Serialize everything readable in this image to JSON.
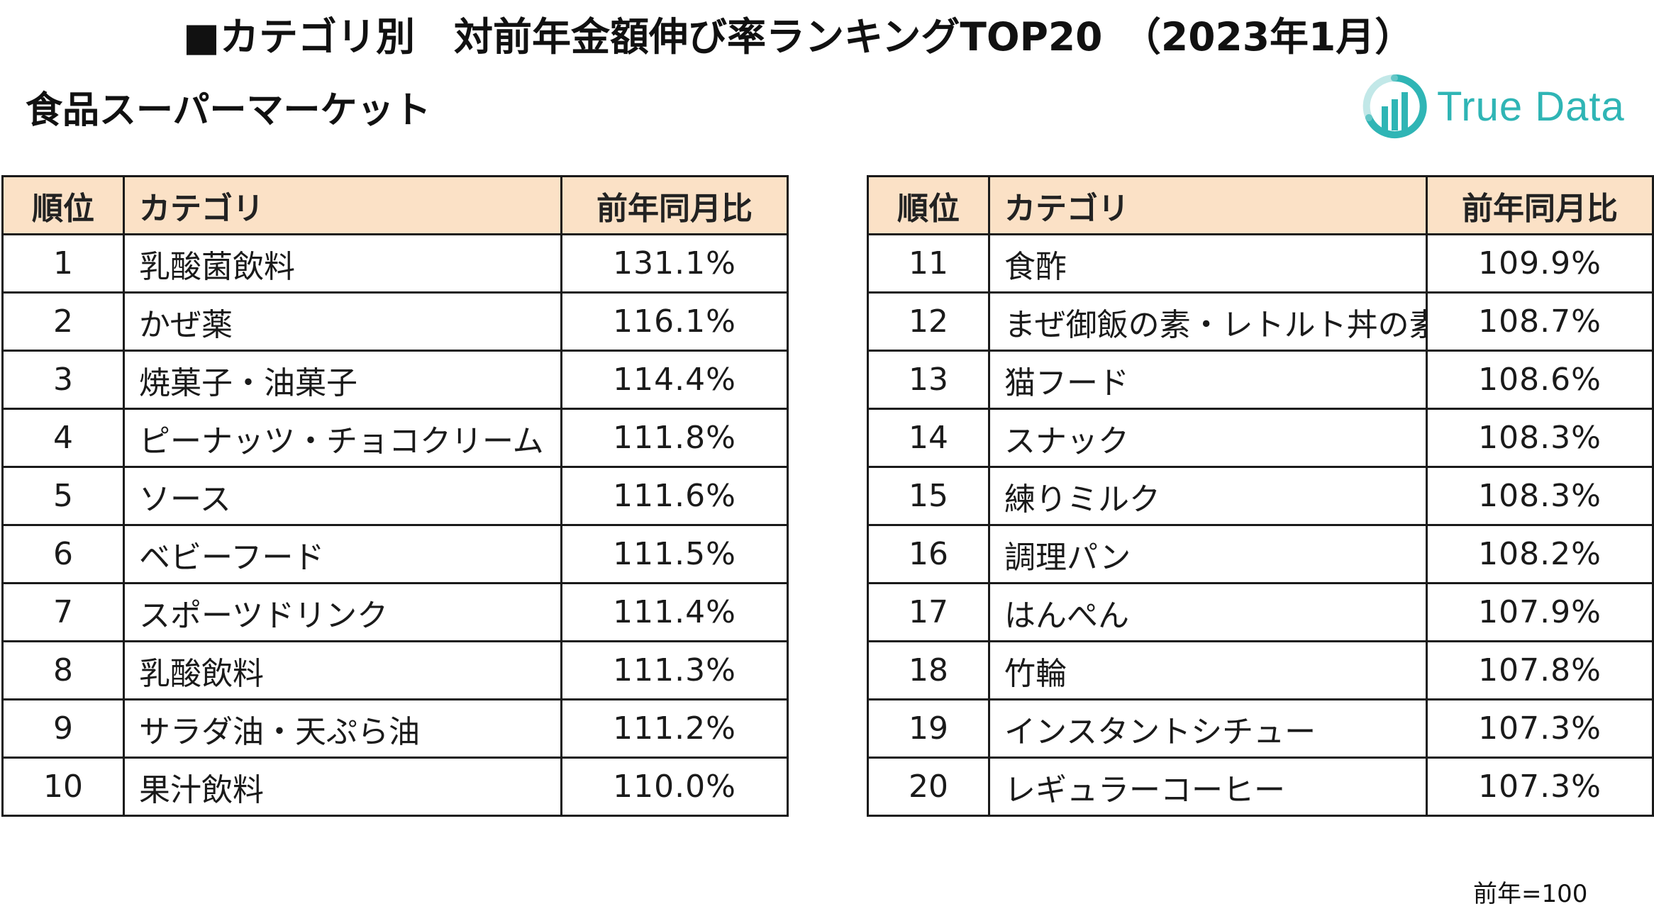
{
  "header": {
    "title": "■カテゴリ別　対前年金額伸び率ランキングTOP20　（2023年1月）",
    "subtitle": "食品スーパーマーケット"
  },
  "logo": {
    "text": "True Data",
    "color": "#2fb5b5"
  },
  "table": {
    "headers": {
      "rank": "順位",
      "category": "カテゴリ",
      "ratio": "前年同月比"
    },
    "header_bg": "#fbe1c6",
    "left_rows": [
      {
        "rank": "1",
        "category": "乳酸菌飲料",
        "ratio": "131.1%"
      },
      {
        "rank": "2",
        "category": "かぜ薬",
        "ratio": "116.1%"
      },
      {
        "rank": "3",
        "category": "焼菓子・油菓子",
        "ratio": "114.4%"
      },
      {
        "rank": "4",
        "category": "ピーナッツ・チョコクリーム",
        "ratio": "111.8%"
      },
      {
        "rank": "5",
        "category": "ソース",
        "ratio": "111.6%"
      },
      {
        "rank": "6",
        "category": "ベビーフード",
        "ratio": "111.5%"
      },
      {
        "rank": "7",
        "category": "スポーツドリンク",
        "ratio": "111.4%"
      },
      {
        "rank": "8",
        "category": "乳酸飲料",
        "ratio": "111.3%"
      },
      {
        "rank": "9",
        "category": "サラダ油・天ぷら油",
        "ratio": "111.2%"
      },
      {
        "rank": "10",
        "category": "果汁飲料",
        "ratio": "110.0%"
      }
    ],
    "right_rows": [
      {
        "rank": "11",
        "category": "食酢",
        "ratio": "109.9%"
      },
      {
        "rank": "12",
        "category": "まぜ御飯の素・レトルト丼の素",
        "ratio": "108.7%"
      },
      {
        "rank": "13",
        "category": "猫フード",
        "ratio": "108.6%"
      },
      {
        "rank": "14",
        "category": "スナック",
        "ratio": "108.3%"
      },
      {
        "rank": "15",
        "category": "練りミルク",
        "ratio": "108.3%"
      },
      {
        "rank": "16",
        "category": "調理パン",
        "ratio": "108.2%"
      },
      {
        "rank": "17",
        "category": "はんぺん",
        "ratio": "107.9%"
      },
      {
        "rank": "18",
        "category": "竹輪",
        "ratio": "107.8%"
      },
      {
        "rank": "19",
        "category": "インスタントシチュー",
        "ratio": "107.3%"
      },
      {
        "rank": "20",
        "category": "レギュラーコーヒー",
        "ratio": "107.3%"
      }
    ]
  },
  "footnote": "前年=100"
}
